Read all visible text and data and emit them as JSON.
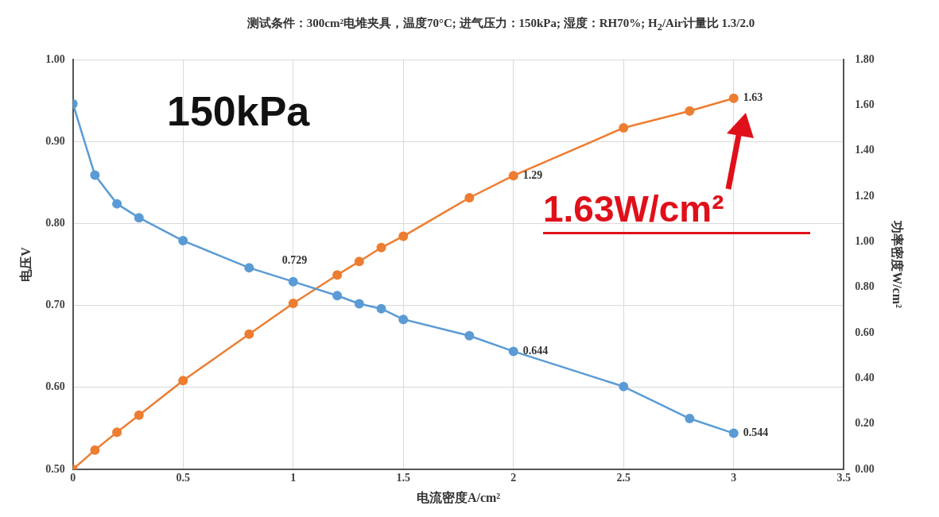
{
  "chart_data": {
    "type": "line",
    "title": "测试条件：300cm²电堆夹具，温度70°C; 进气压力：150kPa; 湿度：RH70%; H$_{2}$/Air计量比 1.3/2.0",
    "xlabel": "电流密度A/cm²",
    "ylabel": "电压V",
    "y2label": "功率密度W/cm²",
    "annotations": [
      "150kPa",
      "1.63W/cm²"
    ],
    "x": [
      0,
      0.1,
      0.2,
      0.3,
      0.5,
      0.8,
      1.0,
      1.2,
      1.3,
      1.4,
      1.5,
      1.8,
      2.0,
      2.5,
      2.8,
      3.0
    ],
    "series": [
      {
        "color": "#5b9bd5",
        "values": [
          0.946,
          0.859,
          0.824,
          0.807,
          0.779,
          0.746,
          0.729,
          0.712,
          0.702,
          0.696,
          0.683,
          0.663,
          0.644,
          0.601,
          0.562,
          0.544
        ],
        "value_labels": [
          null,
          null,
          null,
          null,
          null,
          null,
          "0.729",
          null,
          null,
          null,
          null,
          null,
          "0.644",
          null,
          null,
          "0.544"
        ]
      },
      {
        "color": "#ed7d31",
        "axis": "y2",
        "values": [
          0,
          0.085,
          0.163,
          0.238,
          0.39,
          0.594,
          0.729,
          0.854,
          0.913,
          0.974,
          1.024,
          1.193,
          1.29,
          1.5,
          1.574,
          1.63
        ],
        "value_labels": [
          null,
          null,
          null,
          null,
          null,
          null,
          null,
          null,
          null,
          null,
          null,
          null,
          "1.29",
          null,
          null,
          "1.63"
        ]
      }
    ],
    "xlim": [
      0,
      3.5
    ],
    "xticks": [
      0,
      0.5,
      1,
      1.5,
      2,
      2.5,
      3,
      3.5
    ],
    "ylim": [
      0.5,
      1.0
    ],
    "yticks": [
      {
        "value": 0.5,
        "label": "0.50"
      },
      {
        "value": 0.6,
        "label": "0.60"
      },
      {
        "value": 0.7,
        "label": "0.70"
      },
      {
        "value": 0.8,
        "label": "0.80"
      },
      {
        "value": 0.9,
        "label": "0.90"
      },
      {
        "value": 1.0,
        "label": "1.00"
      }
    ],
    "y2lim": [
      0,
      1.8
    ],
    "y2ticks": [
      {
        "value": 0,
        "label": "0.00"
      },
      {
        "value": 0.2,
        "label": "0.20"
      },
      {
        "value": 0.4,
        "label": "0.40"
      },
      {
        "value": 0.6,
        "label": "0.60"
      },
      {
        "value": 0.8,
        "label": "0.80"
      },
      {
        "value": 1.0,
        "label": "1.00"
      },
      {
        "value": 1.2,
        "label": "1.20"
      },
      {
        "value": 1.4,
        "label": "1.40"
      },
      {
        "value": 1.6,
        "label": "1.60"
      },
      {
        "value": 1.8,
        "label": "1.80"
      }
    ],
    "grid": true,
    "legend": false,
    "marker": "circle",
    "line_style": "solid"
  }
}
